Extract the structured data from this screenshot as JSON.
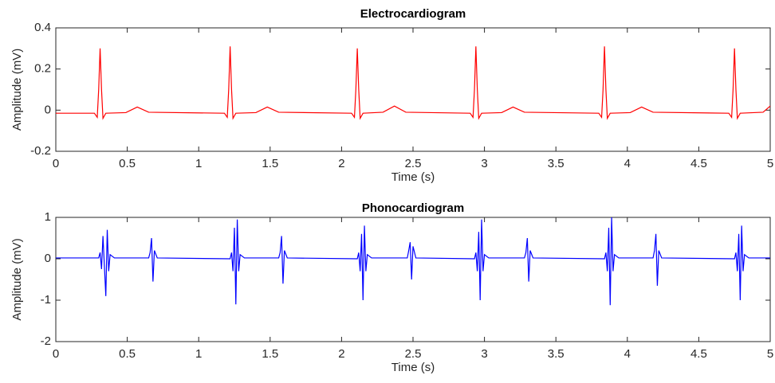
{
  "chart_data": [
    {
      "type": "line",
      "title": "Electrocardiogram",
      "x_label": "Time (s)",
      "y_label": "Amplitude (mV)",
      "color": "#ff0000",
      "x": [
        0,
        0.27,
        0.29,
        0.3,
        0.31,
        0.32,
        0.33,
        0.35,
        0.49,
        0.57,
        0.65,
        1.18,
        1.2,
        1.21,
        1.22,
        1.23,
        1.24,
        1.26,
        1.4,
        1.48,
        1.56,
        2.07,
        2.09,
        2.1,
        2.11,
        2.12,
        2.13,
        2.15,
        2.29,
        2.37,
        2.45,
        2.9,
        2.92,
        2.93,
        2.94,
        2.95,
        2.96,
        2.98,
        3.12,
        3.2,
        3.28,
        3.8,
        3.82,
        3.83,
        3.84,
        3.85,
        3.86,
        3.88,
        4.02,
        4.1,
        4.18,
        4.71,
        4.73,
        4.74,
        4.75,
        4.76,
        4.77,
        4.79,
        4.95,
        5.0
      ],
      "values": [
        -0.015,
        -0.015,
        -0.035,
        0.1,
        0.3,
        0.1,
        -0.04,
        -0.015,
        -0.012,
        0.015,
        -0.01,
        -0.015,
        -0.035,
        0.1,
        0.31,
        0.1,
        -0.04,
        -0.015,
        -0.012,
        0.015,
        -0.01,
        -0.015,
        -0.035,
        0.1,
        0.3,
        0.1,
        -0.04,
        -0.015,
        -0.01,
        0.02,
        -0.01,
        -0.015,
        -0.035,
        0.1,
        0.31,
        0.1,
        -0.04,
        -0.015,
        -0.012,
        0.015,
        -0.01,
        -0.015,
        -0.035,
        0.1,
        0.31,
        0.1,
        -0.04,
        -0.015,
        -0.012,
        0.015,
        -0.01,
        -0.015,
        -0.035,
        0.1,
        0.3,
        0.1,
        -0.04,
        -0.015,
        -0.01,
        0.02
      ],
      "xlim": [
        0,
        5
      ],
      "xticks": [
        0,
        0.5,
        1,
        1.5,
        2,
        2.5,
        3,
        3.5,
        4,
        4.5,
        5
      ],
      "ylim": [
        -0.2,
        0.4
      ],
      "yticks": [
        -0.2,
        0,
        0.2,
        0.4
      ]
    },
    {
      "type": "line",
      "title": "Phonocardiogram",
      "x_label": "Time (s)",
      "y_label": "Amplitude (mV)",
      "color": "#0000ff",
      "x": [
        0,
        0.3,
        0.31,
        0.32,
        0.33,
        0.35,
        0.36,
        0.37,
        0.38,
        0.41,
        0.65,
        0.66,
        0.67,
        0.68,
        0.69,
        0.71,
        1.22,
        1.23,
        1.24,
        1.25,
        1.26,
        1.27,
        1.28,
        1.29,
        1.32,
        1.56,
        1.57,
        1.58,
        1.59,
        1.6,
        1.62,
        2.11,
        2.12,
        2.13,
        2.14,
        2.15,
        2.16,
        2.17,
        2.18,
        2.21,
        2.46,
        2.47,
        2.48,
        2.49,
        2.5,
        2.52,
        2.93,
        2.94,
        2.95,
        2.96,
        2.97,
        2.98,
        2.99,
        3.0,
        3.03,
        3.28,
        3.29,
        3.3,
        3.31,
        3.32,
        3.34,
        3.84,
        3.85,
        3.86,
        3.87,
        3.88,
        3.89,
        3.9,
        3.91,
        3.94,
        4.18,
        4.19,
        4.2,
        4.21,
        4.22,
        4.24,
        4.75,
        4.76,
        4.77,
        4.78,
        4.79,
        4.8,
        4.81,
        4.82,
        4.85,
        5.0
      ],
      "values": [
        0.02,
        0.02,
        0.15,
        -0.25,
        0.55,
        -0.9,
        0.7,
        -0.3,
        0.1,
        0.02,
        0.02,
        0.15,
        0.5,
        -0.55,
        0.2,
        0.02,
        0,
        0.15,
        -0.3,
        0.75,
        -1.1,
        0.95,
        -0.3,
        0.1,
        0.02,
        0.02,
        0.15,
        0.55,
        -0.6,
        0.2,
        0.02,
        0,
        0.15,
        -0.3,
        0.6,
        -1.0,
        0.8,
        -0.3,
        0.1,
        0.02,
        0.02,
        0.2,
        0.4,
        -0.5,
        0.3,
        0.02,
        0,
        0.15,
        -0.3,
        0.65,
        -1.0,
        0.95,
        -0.3,
        0.1,
        0.02,
        0.02,
        0.15,
        0.5,
        -0.55,
        0.2,
        0.02,
        0,
        0.15,
        -0.3,
        0.75,
        -1.12,
        1.0,
        -0.3,
        0.1,
        0.02,
        0.02,
        0.2,
        0.6,
        -0.65,
        0.2,
        0.02,
        0,
        0.15,
        -0.3,
        0.6,
        -1.0,
        0.8,
        -0.3,
        0.1,
        0.02,
        0.02
      ],
      "xlim": [
        0,
        5
      ],
      "xticks": [
        0,
        0.5,
        1,
        1.5,
        2,
        2.5,
        3,
        3.5,
        4,
        4.5,
        5
      ],
      "ylim": [
        -2,
        1
      ],
      "yticks": [
        -2,
        -1,
        0,
        1
      ]
    }
  ]
}
